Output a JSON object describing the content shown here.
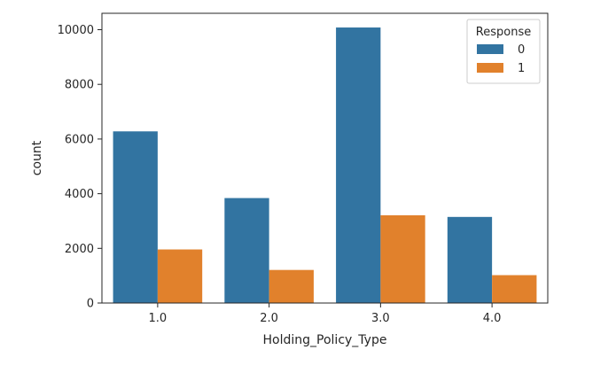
{
  "chart_data": {
    "type": "bar",
    "title": "",
    "xlabel": "Holding_Policy_Type",
    "ylabel": "count",
    "categories": [
      "1.0",
      "2.0",
      "3.0",
      "4.0"
    ],
    "series": [
      {
        "name": "0",
        "values": [
          6280,
          3840,
          10080,
          3150
        ],
        "color": "#3274a1"
      },
      {
        "name": "1",
        "values": [
          1960,
          1210,
          3210,
          1020
        ],
        "color": "#e1812c"
      }
    ],
    "ylim": [
      0,
      10600
    ],
    "yticks": [
      0,
      2000,
      4000,
      6000,
      8000,
      10000
    ],
    "grid": false,
    "legend": {
      "title": "Response",
      "placement": "top-right"
    }
  }
}
